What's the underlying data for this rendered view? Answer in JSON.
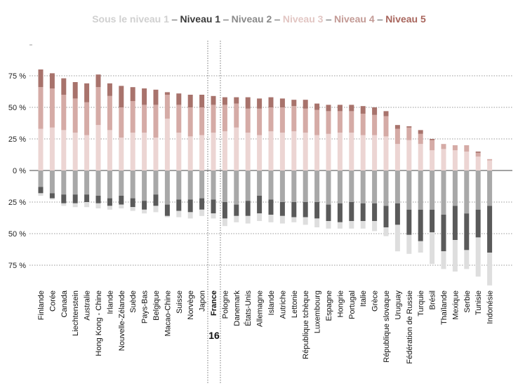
{
  "chart_data": {
    "type": "bar",
    "stacked": "diverging",
    "legend": {
      "position": "top",
      "separator": "–",
      "items": [
        {
          "label": "Sous le niveau 1",
          "color": "#dedede",
          "text_color": "#d0d0d0"
        },
        {
          "label": "Niveau 1",
          "color": "#5a5a5a",
          "text_color": "#3a3a3a"
        },
        {
          "label": "Niveau 2",
          "color": "#a8a8a8",
          "text_color": "#8a8a8a"
        },
        {
          "label": "Niveau 3",
          "color": "#ecd5d3",
          "text_color": "#e2c6c3"
        },
        {
          "label": "Niveau 4",
          "color": "#d5aba6",
          "text_color": "#c39a95"
        },
        {
          "label": "Niveau 5",
          "color": "#a8736c",
          "text_color": "#a8655c"
        }
      ]
    },
    "y_ticks": [
      "75 %",
      "50 %",
      "25 %",
      "0 %",
      "25 %",
      "50 %",
      "75 %"
    ],
    "y_tick_values": [
      75,
      50,
      25,
      0,
      -25,
      -50,
      -75
    ],
    "ylim": [
      -92,
      92
    ],
    "grid": "dotted-horizontal",
    "highlight": {
      "country": "France",
      "rank_label": "16"
    },
    "categories": [
      "Finlande",
      "Corée",
      "Canada",
      "Liechtenstein",
      "Australie",
      "Hong Kong - Chine",
      "Irlande",
      "Nouvelle-Zélande",
      "Suède",
      "Pays-Bas",
      "Belgique",
      "Macao-Chine",
      "Suisse",
      "Norvège",
      "Japon",
      "France",
      "Pologne",
      "Danemark",
      "États-Unis",
      "Allemagne",
      "Islande",
      "Autriche",
      "Lettonie",
      "République tchèque",
      "Luxembourg",
      "Espagne",
      "Hongrie",
      "Portugal",
      "Italie",
      "Grèce",
      "République slovaque",
      "Uruguay",
      "Fédération de Russie",
      "Turquie",
      "Brésil",
      "Thaïlande",
      "Mexique",
      "Serbie",
      "Tunisie",
      "Indonésie"
    ],
    "series": [
      {
        "name": "Niveau 5",
        "direction": "up",
        "values": [
          14,
          12,
          13,
          13,
          15,
          10,
          10,
          17,
          11,
          13,
          12,
          2,
          9,
          10,
          10,
          7,
          6,
          5,
          9,
          8,
          8,
          7,
          5,
          7,
          5,
          5,
          5,
          5,
          6,
          6,
          4,
          3,
          1,
          3,
          1,
          0,
          0,
          0,
          1,
          0
        ]
      },
      {
        "name": "Niveau 4",
        "direction": "up",
        "values": [
          33,
          31,
          28,
          27,
          26,
          30,
          27,
          24,
          25,
          22,
          26,
          19,
          22,
          23,
          22,
          22,
          21,
          19,
          19,
          21,
          19,
          20,
          20,
          19,
          20,
          18,
          17,
          17,
          17,
          16,
          16,
          12,
          10,
          8,
          8,
          4,
          4,
          5,
          3,
          1
        ]
      },
      {
        "name": "Niveau 3",
        "direction": "up",
        "values": [
          33,
          34,
          32,
          30,
          28,
          36,
          32,
          26,
          30,
          30,
          26,
          41,
          30,
          27,
          28,
          30,
          31,
          34,
          30,
          28,
          31,
          30,
          31,
          30,
          28,
          29,
          30,
          30,
          28,
          28,
          27,
          21,
          24,
          21,
          16,
          17,
          16,
          15,
          11,
          8
        ]
      },
      {
        "name": "Niveau 2",
        "direction": "down",
        "values": [
          13,
          18,
          19,
          19,
          19,
          20,
          22,
          20,
          22,
          24,
          19,
          27,
          23,
          23,
          22,
          23,
          25,
          27,
          24,
          20,
          23,
          25,
          25,
          25,
          25,
          27,
          26,
          25,
          26,
          26,
          28,
          26,
          31,
          31,
          31,
          35,
          28,
          34,
          31,
          28
        ]
      },
      {
        "name": "Niveau 1",
        "direction": "down",
        "values": [
          5,
          4,
          7,
          7,
          6,
          6,
          6,
          7,
          7,
          7,
          9,
          9,
          9,
          10,
          9,
          11,
          13,
          9,
          12,
          14,
          12,
          11,
          12,
          12,
          13,
          13,
          15,
          15,
          14,
          14,
          17,
          17,
          20,
          25,
          18,
          29,
          27,
          29,
          22,
          37
        ]
      },
      {
        "name": "Sous le niveau 1",
        "direction": "down",
        "values": [
          2,
          1,
          2,
          3,
          4,
          4,
          3,
          3,
          3,
          3,
          5,
          1,
          5,
          5,
          5,
          4,
          6,
          5,
          6,
          6,
          6,
          6,
          4,
          6,
          7,
          6,
          5,
          6,
          6,
          8,
          7,
          21,
          15,
          9,
          25,
          14,
          25,
          15,
          31,
          26
        ]
      }
    ]
  }
}
